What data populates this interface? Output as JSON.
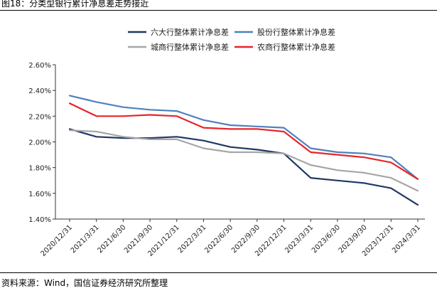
{
  "header": {
    "title": "图18：分类型银行累计净息差走势接近"
  },
  "footer": {
    "source": "资料来源：Wind，国信证券经济研究所整理"
  },
  "colors": {
    "six_big": "#1f3864",
    "joint_stock": "#4f81bd",
    "city": "#a6a6a6",
    "rural": "#e8252a"
  },
  "chart_data": {
    "type": "line",
    "title": "",
    "xlabel": "",
    "ylabel": "",
    "ylim": [
      1.4,
      2.6
    ],
    "yticks": [
      "1.40%",
      "1.60%",
      "1.80%",
      "2.00%",
      "2.20%",
      "2.40%",
      "2.60%"
    ],
    "ytick_values": [
      1.4,
      1.6,
      1.8,
      2.0,
      2.2,
      2.4,
      2.6
    ],
    "grid": false,
    "legend_position": "top",
    "categories": [
      "2020/12/31",
      "2021/3/31",
      "2021/6/30",
      "2021/9/30",
      "2021/12/31",
      "2022/3/31",
      "2022/6/30",
      "2022/9/30",
      "2022/12/31",
      "2023/3/31",
      "2023/6/30",
      "2023/9/30",
      "2023/12/31",
      "2024/3/31"
    ],
    "series": [
      {
        "name": "六大行整体累计净息差",
        "color": "#1f3864",
        "values": [
          2.1,
          2.04,
          2.03,
          2.03,
          2.04,
          2.01,
          1.96,
          1.94,
          1.91,
          1.72,
          1.7,
          1.68,
          1.64,
          1.51
        ]
      },
      {
        "name": "股份行整体累计净息差",
        "color": "#4f81bd",
        "values": [
          2.36,
          2.31,
          2.27,
          2.25,
          2.24,
          2.17,
          2.13,
          2.12,
          2.11,
          1.95,
          1.92,
          1.91,
          1.88,
          1.71
        ]
      },
      {
        "name": "城商行整体累计净息差",
        "color": "#a6a6a6",
        "values": [
          2.09,
          2.08,
          2.04,
          2.02,
          2.02,
          1.95,
          1.92,
          1.92,
          1.91,
          1.82,
          1.78,
          1.76,
          1.72,
          1.62
        ]
      },
      {
        "name": "农商行整体累计净息差",
        "color": "#e8252a",
        "values": [
          2.3,
          2.2,
          2.2,
          2.21,
          2.2,
          2.11,
          2.1,
          2.1,
          2.08,
          1.92,
          1.9,
          1.88,
          1.84,
          1.71
        ]
      }
    ]
  }
}
